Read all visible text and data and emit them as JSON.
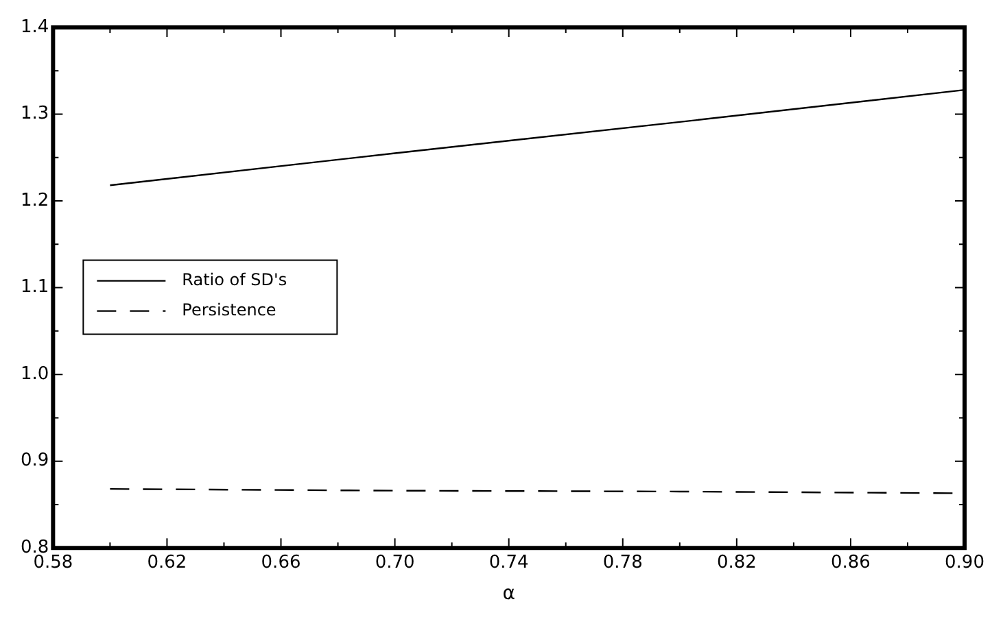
{
  "chart_data": {
    "type": "line",
    "xlabel": "α",
    "x": [
      0.6,
      0.7,
      0.8,
      0.9
    ],
    "series": [
      {
        "name": "Ratio of SD's",
        "color": "#000000",
        "line_style": "solid",
        "values": [
          1.218,
          1.255,
          1.291,
          1.328
        ]
      },
      {
        "name": "Persistence",
        "color": "#000000",
        "line_style": "dashed",
        "values": [
          0.868,
          0.866,
          0.865,
          0.863
        ]
      }
    ],
    "xlim": [
      0.58,
      0.9
    ],
    "xticks": [
      0.58,
      {
        "value": 0.6,
        "label": null
      },
      0.62,
      {
        "value": 0.64,
        "label": null
      },
      0.66,
      {
        "value": 0.68,
        "label": null
      },
      "0.70",
      {
        "value": 0.72,
        "label": null
      },
      0.74,
      {
        "value": 0.76,
        "label": null
      },
      0.78,
      {
        "value": 0.8,
        "label": null
      },
      0.82,
      {
        "value": 0.84,
        "label": null
      },
      0.86,
      {
        "value": 0.88,
        "label": null
      },
      "0.90"
    ],
    "ylim": [
      0.8,
      1.4
    ],
    "yticks": [
      "0.8",
      {
        "value": 0.85,
        "label": null
      },
      0.9,
      {
        "value": 0.95,
        "label": null
      },
      "1.0",
      {
        "value": 1.05,
        "label": null
      },
      1.1,
      {
        "value": 1.15,
        "label": null
      },
      1.2,
      {
        "value": 1.25,
        "label": null
      },
      1.3,
      {
        "value": 1.35,
        "label": null
      },
      1.4
    ],
    "grid": false,
    "legend": "left",
    "marker": "none"
  }
}
